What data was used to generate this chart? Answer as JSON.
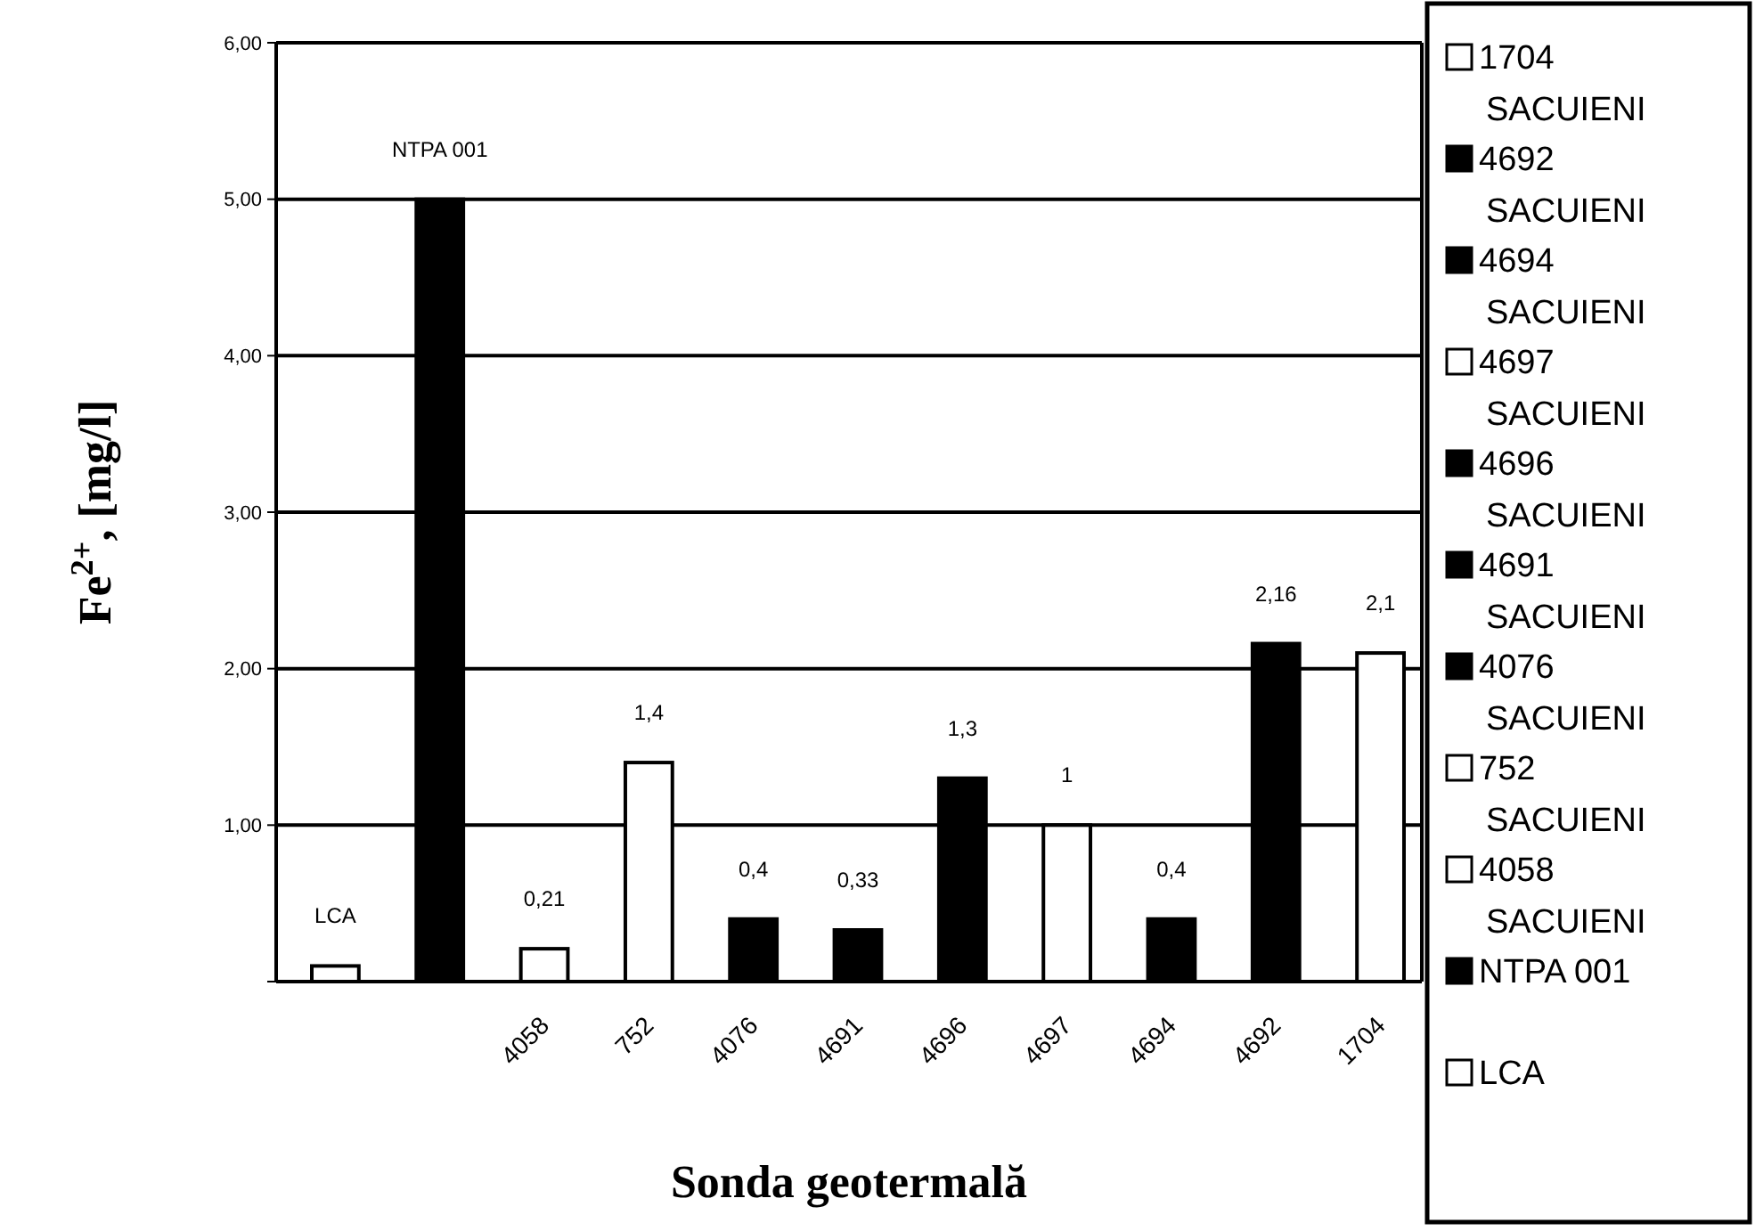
{
  "chart_data": {
    "type": "bar",
    "xlabel": "Sonda geotermală",
    "ylabel": "Fe$^{2+}$, [mg/l]",
    "categories": [
      null,
      null,
      "4058",
      "752",
      "4076",
      "4691",
      "4696",
      "4697",
      "4694",
      "4692",
      "1704"
    ],
    "ylim": [
      0,
      6
    ],
    "yticks": [
      {
        "value": 0,
        "label": null
      },
      {
        "value": 1,
        "label": "1,00"
      },
      {
        "value": 2,
        "label": "2,00"
      },
      {
        "value": 3,
        "label": "3,00"
      },
      {
        "value": 4,
        "label": "4,00"
      },
      {
        "value": 5,
        "label": "5,00"
      },
      {
        "value": 6,
        "label": "6,00"
      }
    ],
    "grid": "y",
    "legend": "right",
    "series": [
      {
        "name": "LCA",
        "color": "#ffffff",
        "values": [
          0.1,
          null,
          null,
          null,
          null,
          null,
          null,
          null,
          null,
          null,
          null
        ],
        "value_labels": [
          "LCA",
          null,
          null,
          null,
          null,
          null,
          null,
          null,
          null,
          null,
          null
        ]
      },
      {
        "name": "SACUIENI NTPA 001",
        "color": "#000000",
        "values": [
          null,
          5,
          null,
          null,
          null,
          null,
          null,
          null,
          null,
          null,
          null
        ],
        "value_labels": [
          null,
          "NTPA 001",
          null,
          null,
          null,
          null,
          null,
          null,
          null,
          null,
          null
        ]
      },
      {
        "name": "SACUIENI 4058",
        "color": "#ffffff",
        "values": [
          null,
          null,
          0.21,
          null,
          null,
          null,
          null,
          null,
          null,
          null,
          null
        ],
        "value_labels": [
          null,
          null,
          "0,21",
          null,
          null,
          null,
          null,
          null,
          null,
          null,
          null
        ]
      },
      {
        "name": "SACUIENI 752",
        "color": "#ffffff",
        "values": [
          null,
          null,
          null,
          1.4,
          null,
          null,
          null,
          null,
          null,
          null,
          null
        ],
        "value_labels": [
          null,
          null,
          null,
          "1,4",
          null,
          null,
          null,
          null,
          null,
          null,
          null
        ]
      },
      {
        "name": "SACUIENI 4076",
        "color": "#000000",
        "values": [
          null,
          null,
          null,
          null,
          0.4,
          null,
          null,
          null,
          null,
          null,
          null
        ],
        "value_labels": [
          null,
          null,
          null,
          null,
          "0,4",
          null,
          null,
          null,
          null,
          null,
          null
        ]
      },
      {
        "name": "SACUIENI 4691",
        "color": "#000000",
        "values": [
          null,
          null,
          null,
          null,
          null,
          0.33,
          null,
          null,
          null,
          null,
          null
        ],
        "value_labels": [
          null,
          null,
          null,
          null,
          null,
          "0,33",
          null,
          null,
          null,
          null,
          null
        ]
      },
      {
        "name": "SACUIENI 4696",
        "color": "#000000",
        "values": [
          null,
          null,
          null,
          null,
          null,
          null,
          1.3,
          null,
          null,
          null,
          null
        ],
        "value_labels": [
          null,
          null,
          null,
          null,
          null,
          null,
          "1,3",
          null,
          null,
          null,
          null
        ]
      },
      {
        "name": "SACUIENI 4697",
        "color": "#ffffff",
        "values": [
          null,
          null,
          null,
          null,
          null,
          null,
          null,
          1,
          null,
          null,
          null
        ],
        "value_labels": [
          null,
          null,
          null,
          null,
          null,
          null,
          null,
          "1",
          null,
          null,
          null
        ]
      },
      {
        "name": "SACUIENI 4694",
        "color": "#000000",
        "values": [
          null,
          null,
          null,
          null,
          null,
          null,
          null,
          null,
          0.4,
          null,
          null
        ],
        "value_labels": [
          null,
          null,
          null,
          null,
          null,
          null,
          null,
          null,
          "0,4",
          null,
          null
        ]
      },
      {
        "name": "SACUIENI 4692",
        "color": "#000000",
        "values": [
          null,
          null,
          null,
          null,
          null,
          null,
          null,
          null,
          null,
          2.16,
          null
        ],
        "value_labels": [
          null,
          null,
          null,
          null,
          null,
          null,
          null,
          null,
          null,
          "2,16",
          null
        ]
      },
      {
        "name": "1704",
        "color": "#ffffff",
        "values": [
          null,
          null,
          null,
          null,
          null,
          null,
          null,
          null,
          null,
          null,
          2.1
        ],
        "value_labels": [
          null,
          null,
          null,
          null,
          null,
          null,
          null,
          null,
          null,
          null,
          "2,1"
        ]
      }
    ]
  }
}
